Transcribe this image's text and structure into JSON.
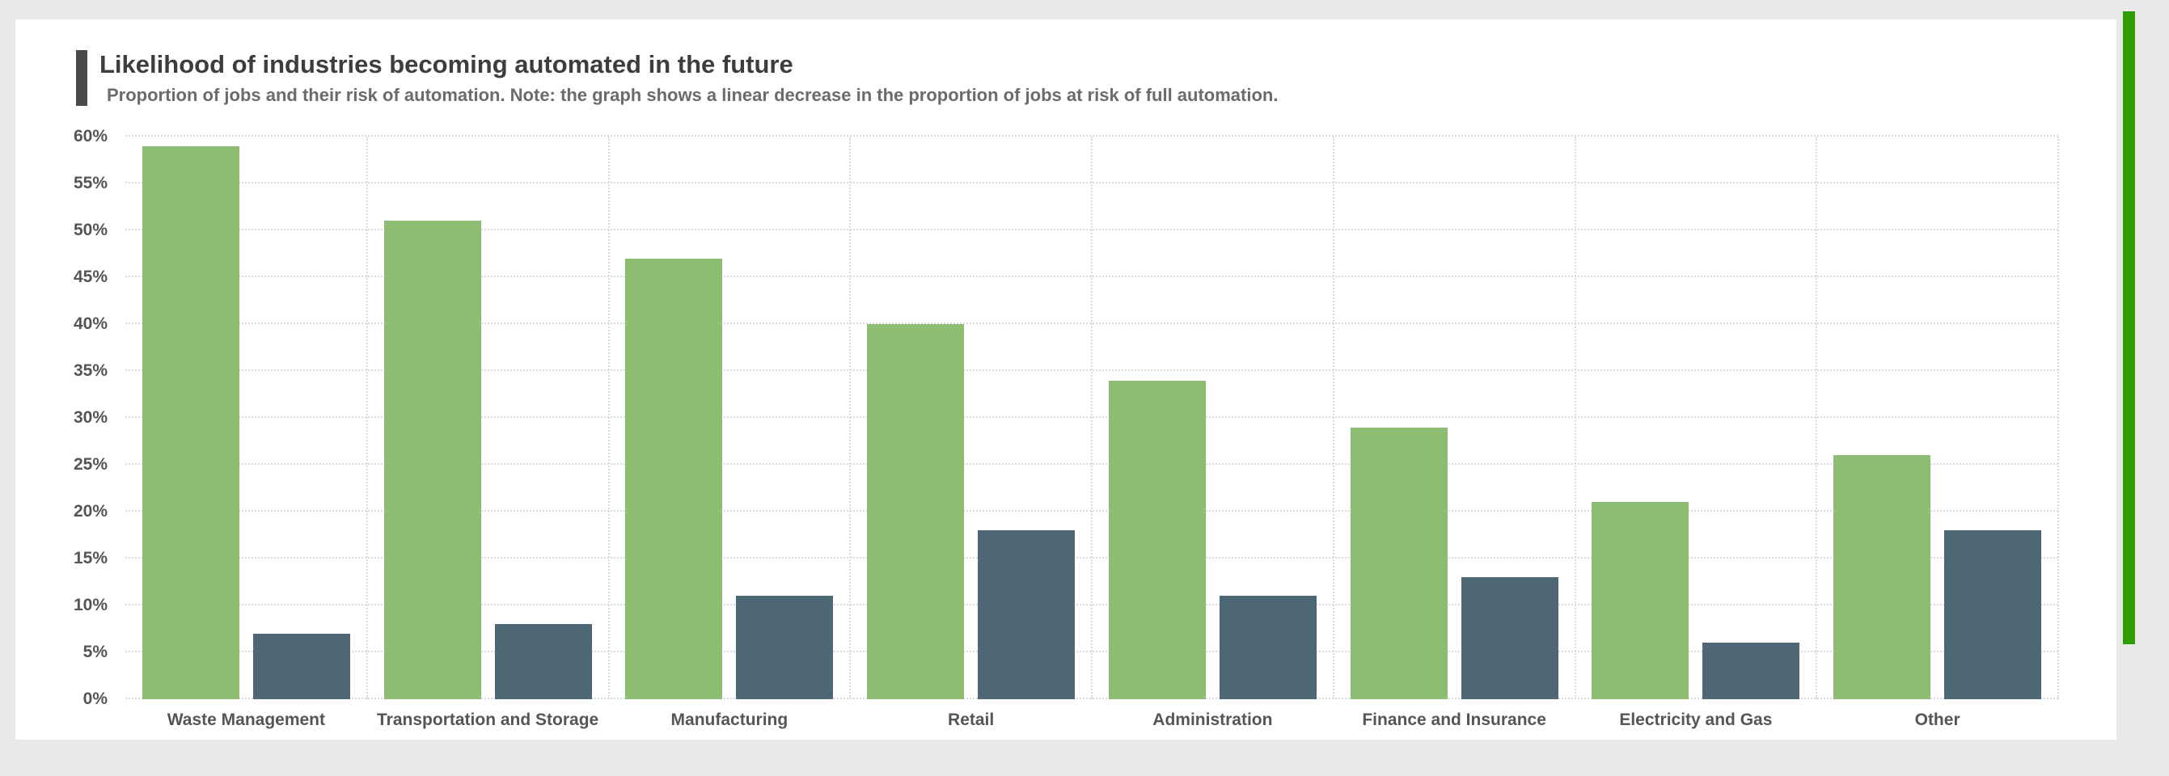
{
  "window": {
    "background_color": "#e9e9e9",
    "card_background_color": "#ffffff"
  },
  "header": {
    "title": "Likelihood of industries becoming automated in the future",
    "subtitle": "Proportion of jobs and their risk of automation. Note: the graph shows a linear decrease in the proportion of jobs at risk of full automation."
  },
  "accent": {
    "title_bar_color": "#4a4a4a",
    "scrollbar_color": "#2f9e05"
  },
  "chart_data": {
    "type": "bar",
    "title": "Likelihood of industries becoming automated in the future",
    "subtitle": "Proportion of jobs and their risk of automation. Note: the graph shows a linear decrease in the proportion of jobs at risk of full automation.",
    "categories": [
      "Waste Management",
      "Transportation and Storage",
      "Manufacturing",
      "Retail",
      "Administration",
      "Finance and Insurance",
      "Electricity and Gas",
      "Other"
    ],
    "series": [
      {
        "name": "green",
        "color": "#8dbd72",
        "values": [
          59,
          51,
          47,
          40,
          34,
          29,
          21,
          26
        ]
      },
      {
        "name": "dark",
        "color": "#4d6874",
        "values": [
          7,
          8,
          11,
          18,
          11,
          13,
          6,
          18
        ]
      }
    ],
    "value_unit": "%",
    "ylim": [
      0,
      60
    ],
    "ytick_step": 5,
    "ytick_labels": [
      "0%",
      "5%",
      "10%",
      "15%",
      "20%",
      "25%",
      "30%",
      "35%",
      "40%",
      "45%",
      "50%",
      "55%",
      "60%"
    ],
    "xlabel": "",
    "ylabel": "",
    "grid": true,
    "legend_position": "none"
  }
}
